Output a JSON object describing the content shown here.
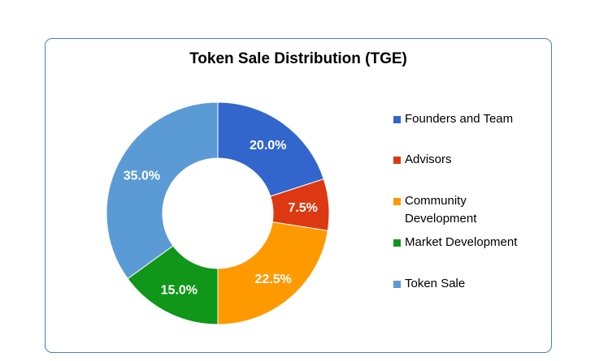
{
  "chart_data": {
    "type": "pie",
    "title": "Token Sale Distribution (TGE)",
    "donut": true,
    "legend_position": "right",
    "categories": [
      "Founders and Team",
      "Advisors",
      "Community Development",
      "Market Development",
      "Token Sale"
    ],
    "values": [
      20.0,
      7.5,
      22.5,
      15.0,
      35.0
    ],
    "labels": [
      "20.0%",
      "7.5%",
      "22.5%",
      "15.0%",
      "35.0%"
    ],
    "colors": [
      "#3366cc",
      "#dc3912",
      "#ff9900",
      "#109618",
      "#5b9bd5"
    ],
    "legend": [
      {
        "label": "Founders and Team",
        "color": "#3366cc"
      },
      {
        "label": "Advisors",
        "color": "#dc3912"
      },
      {
        "label": "Community Development",
        "color": "#ff9900"
      },
      {
        "label": "Market Development",
        "color": "#109618"
      },
      {
        "label": "Token Sale",
        "color": "#5b9bd5"
      }
    ]
  }
}
